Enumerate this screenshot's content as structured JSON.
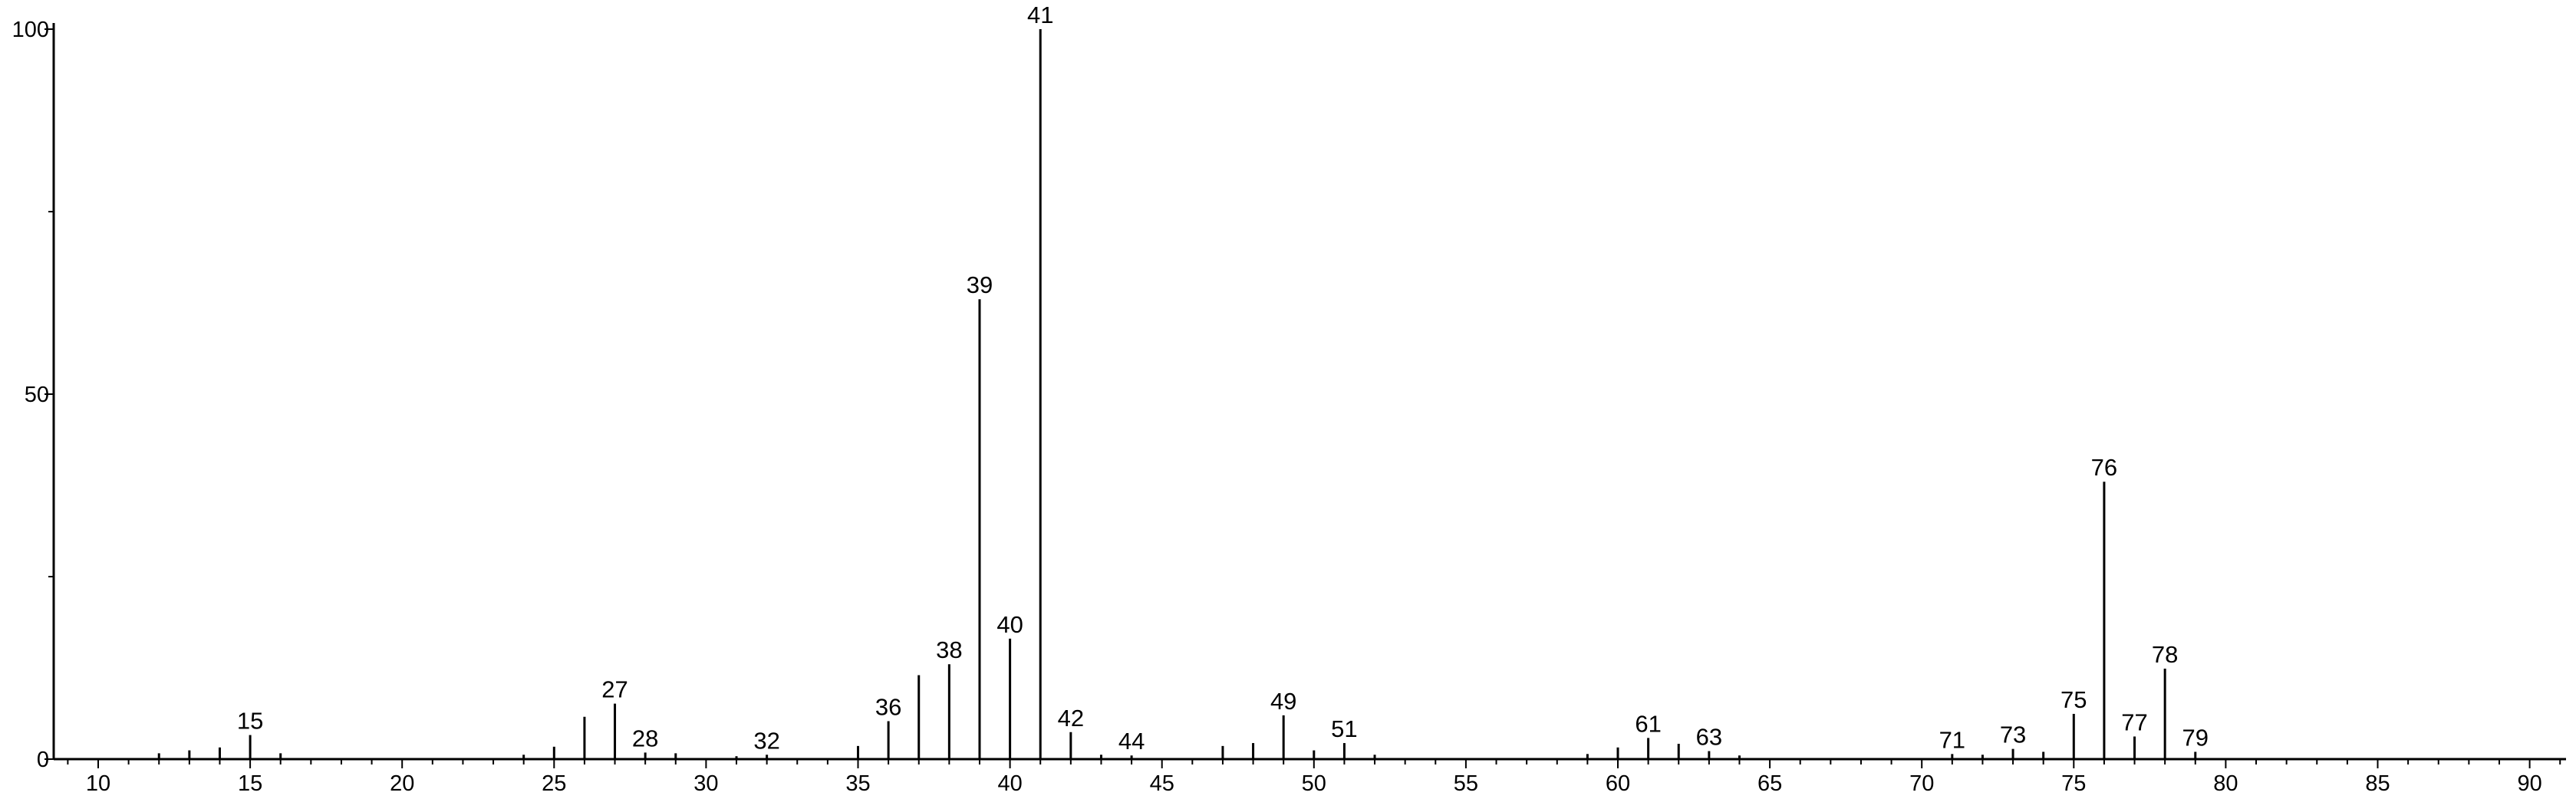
{
  "chart_data": {
    "type": "bar",
    "title": "",
    "xlabel": "",
    "ylabel": "",
    "xlim": [
      8.5,
      91.5
    ],
    "ylim": [
      0,
      100
    ],
    "x_ticks": [
      10,
      15,
      20,
      25,
      30,
      35,
      40,
      45,
      50,
      55,
      60,
      65,
      70,
      75,
      80,
      85,
      90
    ],
    "y_ticks": [
      0,
      50,
      100
    ],
    "grid": false,
    "legend": "none",
    "peaks": [
      {
        "mz": 12,
        "intensity": 0.8
      },
      {
        "mz": 13,
        "intensity": 1.2
      },
      {
        "mz": 14,
        "intensity": 1.6
      },
      {
        "mz": 15,
        "intensity": 3.3,
        "label": "15"
      },
      {
        "mz": 16,
        "intensity": 0.8
      },
      {
        "mz": 24,
        "intensity": 0.6
      },
      {
        "mz": 25,
        "intensity": 1.7
      },
      {
        "mz": 26,
        "intensity": 5.8
      },
      {
        "mz": 27,
        "intensity": 7.6,
        "label": "27"
      },
      {
        "mz": 28,
        "intensity": 0.9,
        "label": "28"
      },
      {
        "mz": 29,
        "intensity": 0.8
      },
      {
        "mz": 31,
        "intensity": 0.4
      },
      {
        "mz": 32,
        "intensity": 0.6,
        "label": "32"
      },
      {
        "mz": 35,
        "intensity": 1.8
      },
      {
        "mz": 36,
        "intensity": 5.2,
        "label": "36"
      },
      {
        "mz": 37,
        "intensity": 11.5
      },
      {
        "mz": 38,
        "intensity": 13.0,
        "label": "38"
      },
      {
        "mz": 39,
        "intensity": 63.0,
        "label": "39"
      },
      {
        "mz": 40,
        "intensity": 16.5,
        "label": "40"
      },
      {
        "mz": 41,
        "intensity": 100.0,
        "label": "41"
      },
      {
        "mz": 42,
        "intensity": 3.7,
        "label": "42"
      },
      {
        "mz": 43,
        "intensity": 0.6
      },
      {
        "mz": 44,
        "intensity": 0.5,
        "label": "44"
      },
      {
        "mz": 47,
        "intensity": 1.8
      },
      {
        "mz": 48,
        "intensity": 2.2
      },
      {
        "mz": 49,
        "intensity": 6.0,
        "label": "49"
      },
      {
        "mz": 50,
        "intensity": 1.2
      },
      {
        "mz": 51,
        "intensity": 2.2,
        "label": "51"
      },
      {
        "mz": 52,
        "intensity": 0.6
      },
      {
        "mz": 59,
        "intensity": 0.7
      },
      {
        "mz": 60,
        "intensity": 1.6
      },
      {
        "mz": 61,
        "intensity": 2.9,
        "label": "61"
      },
      {
        "mz": 62,
        "intensity": 2.1
      },
      {
        "mz": 63,
        "intensity": 1.1,
        "label": "63"
      },
      {
        "mz": 64,
        "intensity": 0.5
      },
      {
        "mz": 71,
        "intensity": 0.7,
        "label": "71"
      },
      {
        "mz": 72,
        "intensity": 0.6
      },
      {
        "mz": 73,
        "intensity": 1.4,
        "label": "73"
      },
      {
        "mz": 74,
        "intensity": 1.0
      },
      {
        "mz": 75,
        "intensity": 6.2,
        "label": "75"
      },
      {
        "mz": 76,
        "intensity": 38.0,
        "label": "76"
      },
      {
        "mz": 77,
        "intensity": 3.1,
        "label": "77"
      },
      {
        "mz": 78,
        "intensity": 12.4,
        "label": "78"
      },
      {
        "mz": 79,
        "intensity": 1.0,
        "label": "79"
      }
    ]
  }
}
